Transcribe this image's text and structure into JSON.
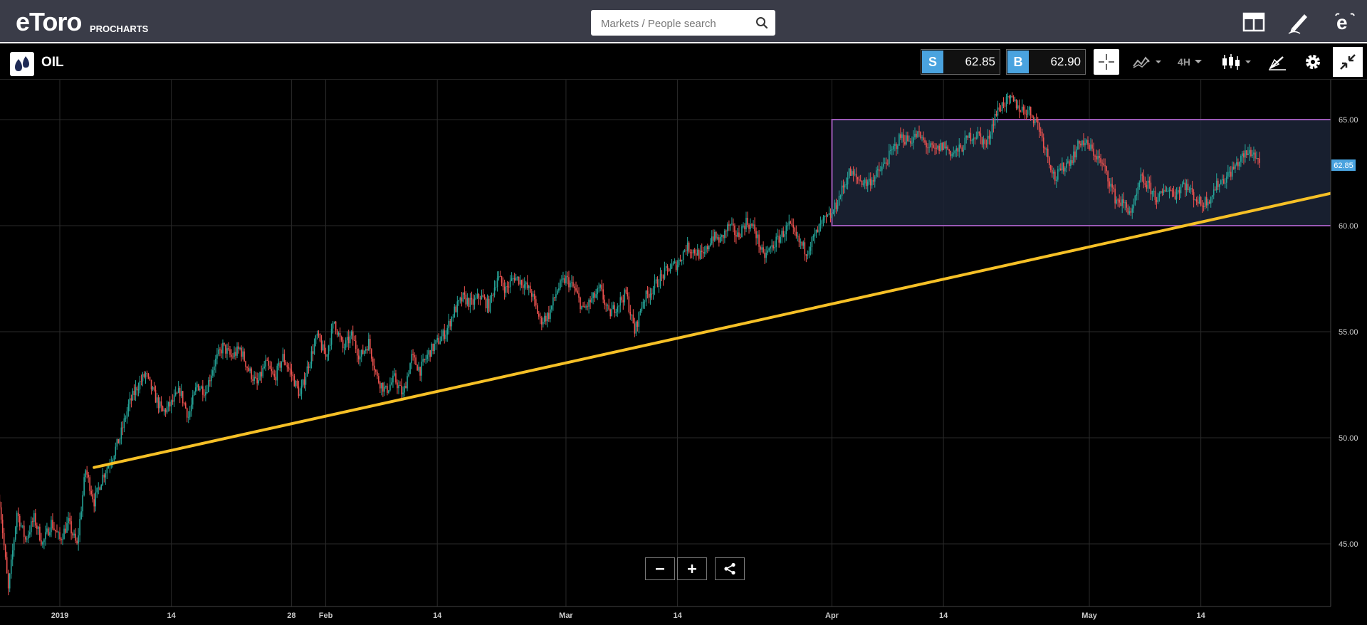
{
  "header": {
    "logo": "eToro",
    "logo_sub": "PROCHARTS",
    "search_placeholder": "Markets / People search"
  },
  "toolbar": {
    "instrument": "OIL",
    "sell_label": "S",
    "sell_price": "62.85",
    "buy_label": "B",
    "buy_price": "62.90",
    "timeframe": "4H"
  },
  "icons": {
    "search": "search-icon",
    "layout": "layout-icon",
    "pencil": "pencil-icon",
    "etoro": "etoro-icon",
    "crosshair": "crosshair-icon",
    "indicators": "indicators-icon",
    "candles": "candlestick-icon",
    "drawing": "drawing-tools-icon",
    "settings": "gear-icon",
    "fullscreen": "exit-fullscreen-icon",
    "zoom_out": "minus-icon",
    "zoom_in": "plus-icon",
    "share": "share-icon"
  },
  "colors": {
    "up": "#26a69a",
    "down": "#ef5350",
    "trendline": "#f6c026",
    "range_border": "#9b59b6",
    "range_fill": "#1c2437",
    "price_tag": "#4aa3df"
  },
  "chart_data": {
    "type": "candlestick",
    "instrument": "OIL",
    "timeframe": "4H",
    "ylim": [
      42.2,
      66.5
    ],
    "yticks": [
      "65.00",
      "60.00",
      "55.00",
      "50.00",
      "45.00"
    ],
    "xticks": [
      {
        "label": "2019",
        "day": 0
      },
      {
        "label": "14",
        "day": 13
      },
      {
        "label": "28",
        "day": 27
      },
      {
        "label": "Feb",
        "day": 31
      },
      {
        "label": "14",
        "day": 44
      },
      {
        "label": "Mar",
        "day": 59
      },
      {
        "label": "14",
        "day": 72
      },
      {
        "label": "Apr",
        "day": 90
      },
      {
        "label": "14",
        "day": 103
      },
      {
        "label": "May",
        "day": 120
      },
      {
        "label": "14",
        "day": 133
      }
    ],
    "current_price": "62.85",
    "close_path": [
      [
        -7,
        47.0
      ],
      [
        -6,
        42.8
      ],
      [
        -5,
        46.5
      ],
      [
        -4,
        45.2
      ],
      [
        -3,
        46.2
      ],
      [
        -2,
        45.0
      ],
      [
        -1,
        46.0
      ],
      [
        0,
        45.2
      ],
      [
        1,
        46.0
      ],
      [
        2,
        44.9
      ],
      [
        3,
        48.5
      ],
      [
        4,
        47.0
      ],
      [
        5,
        48.2
      ],
      [
        6,
        49.0
      ],
      [
        7,
        50.0
      ],
      [
        8,
        51.5
      ],
      [
        9,
        52.4
      ],
      [
        10,
        53.0
      ],
      [
        11,
        52.0
      ],
      [
        12,
        51.2
      ],
      [
        13,
        51.6
      ],
      [
        14,
        52.2
      ],
      [
        15,
        51.0
      ],
      [
        16,
        52.5
      ],
      [
        17,
        52.2
      ],
      [
        18,
        53.5
      ],
      [
        19,
        54.3
      ],
      [
        20,
        53.8
      ],
      [
        21,
        54.2
      ],
      [
        22,
        53.2
      ],
      [
        23,
        52.5
      ],
      [
        24,
        53.5
      ],
      [
        25,
        52.8
      ],
      [
        26,
        53.8
      ],
      [
        27,
        53.0
      ],
      [
        28,
        52.0
      ],
      [
        29,
        53.5
      ],
      [
        30,
        54.8
      ],
      [
        31,
        53.8
      ],
      [
        32,
        55.5
      ],
      [
        33,
        54.2
      ],
      [
        34,
        54.8
      ],
      [
        35,
        53.8
      ],
      [
        36,
        54.5
      ],
      [
        37,
        52.8
      ],
      [
        38,
        52.2
      ],
      [
        39,
        52.8
      ],
      [
        40,
        52.0
      ],
      [
        41,
        53.8
      ],
      [
        42,
        53.2
      ],
      [
        43,
        54.0
      ],
      [
        44,
        54.5
      ],
      [
        45,
        55.0
      ],
      [
        46,
        56.0
      ],
      [
        47,
        56.6
      ],
      [
        48,
        56.3
      ],
      [
        49,
        56.7
      ],
      [
        50,
        56.2
      ],
      [
        51,
        57.6
      ],
      [
        52,
        57.0
      ],
      [
        53,
        57.6
      ],
      [
        54,
        57.3
      ],
      [
        55,
        56.8
      ],
      [
        56,
        55.5
      ],
      [
        57,
        55.8
      ],
      [
        58,
        57.0
      ],
      [
        59,
        57.5
      ],
      [
        60,
        57.0
      ],
      [
        61,
        56.0
      ],
      [
        62,
        56.5
      ],
      [
        63,
        57.0
      ],
      [
        64,
        55.8
      ],
      [
        65,
        56.3
      ],
      [
        66,
        56.8
      ],
      [
        67,
        55.0
      ],
      [
        68,
        56.5
      ],
      [
        69,
        57.0
      ],
      [
        70,
        57.5
      ],
      [
        71,
        58.0
      ],
      [
        72,
        58.2
      ],
      [
        73,
        59.0
      ],
      [
        74,
        58.8
      ],
      [
        75,
        58.5
      ],
      [
        76,
        59.5
      ],
      [
        77,
        59.3
      ],
      [
        78,
        60.0
      ],
      [
        79,
        59.5
      ],
      [
        80,
        60.2
      ],
      [
        81,
        59.8
      ],
      [
        82,
        58.5
      ],
      [
        83,
        59.0
      ],
      [
        84,
        59.5
      ],
      [
        85,
        60.0
      ],
      [
        86,
        59.3
      ],
      [
        87,
        58.8
      ],
      [
        88,
        59.5
      ],
      [
        89,
        60.2
      ],
      [
        90,
        60.5
      ],
      [
        91,
        61.5
      ],
      [
        92,
        62.5
      ],
      [
        93,
        62.2
      ],
      [
        94,
        62.0
      ],
      [
        95,
        62.3
      ],
      [
        96,
        62.8
      ],
      [
        97,
        63.5
      ],
      [
        98,
        64.2
      ],
      [
        99,
        64.0
      ],
      [
        100,
        64.3
      ],
      [
        101,
        63.8
      ],
      [
        102,
        63.5
      ],
      [
        103,
        63.8
      ],
      [
        104,
        63.4
      ],
      [
        105,
        63.6
      ],
      [
        106,
        64.2
      ],
      [
        107,
        64.3
      ],
      [
        108,
        63.8
      ],
      [
        109,
        65.2
      ],
      [
        110,
        65.8
      ],
      [
        111,
        65.9
      ],
      [
        112,
        65.5
      ],
      [
        113,
        65.4
      ],
      [
        114,
        64.8
      ],
      [
        115,
        63.5
      ],
      [
        116,
        62.2
      ],
      [
        117,
        62.8
      ],
      [
        118,
        63.2
      ],
      [
        119,
        64.0
      ],
      [
        120,
        63.7
      ],
      [
        121,
        63.2
      ],
      [
        122,
        62.5
      ],
      [
        123,
        61.3
      ],
      [
        124,
        61.0
      ],
      [
        125,
        60.6
      ],
      [
        126,
        62.2
      ],
      [
        127,
        61.8
      ],
      [
        128,
        61.2
      ],
      [
        129,
        61.8
      ],
      [
        130,
        61.5
      ],
      [
        131,
        62.0
      ],
      [
        132,
        61.5
      ],
      [
        133,
        61.0
      ],
      [
        134,
        61.3
      ],
      [
        135,
        62.0
      ],
      [
        136,
        62.3
      ],
      [
        137,
        62.8
      ],
      [
        138,
        63.3
      ],
      [
        139,
        63.5
      ],
      [
        140,
        62.85
      ]
    ],
    "trendline": [
      [
        4,
        48.6
      ],
      [
        149,
        61.6
      ]
    ],
    "range_box": {
      "day_start": 90,
      "day_end": 149,
      "low": 60.0,
      "high": 65.0
    }
  },
  "meta": {}
}
